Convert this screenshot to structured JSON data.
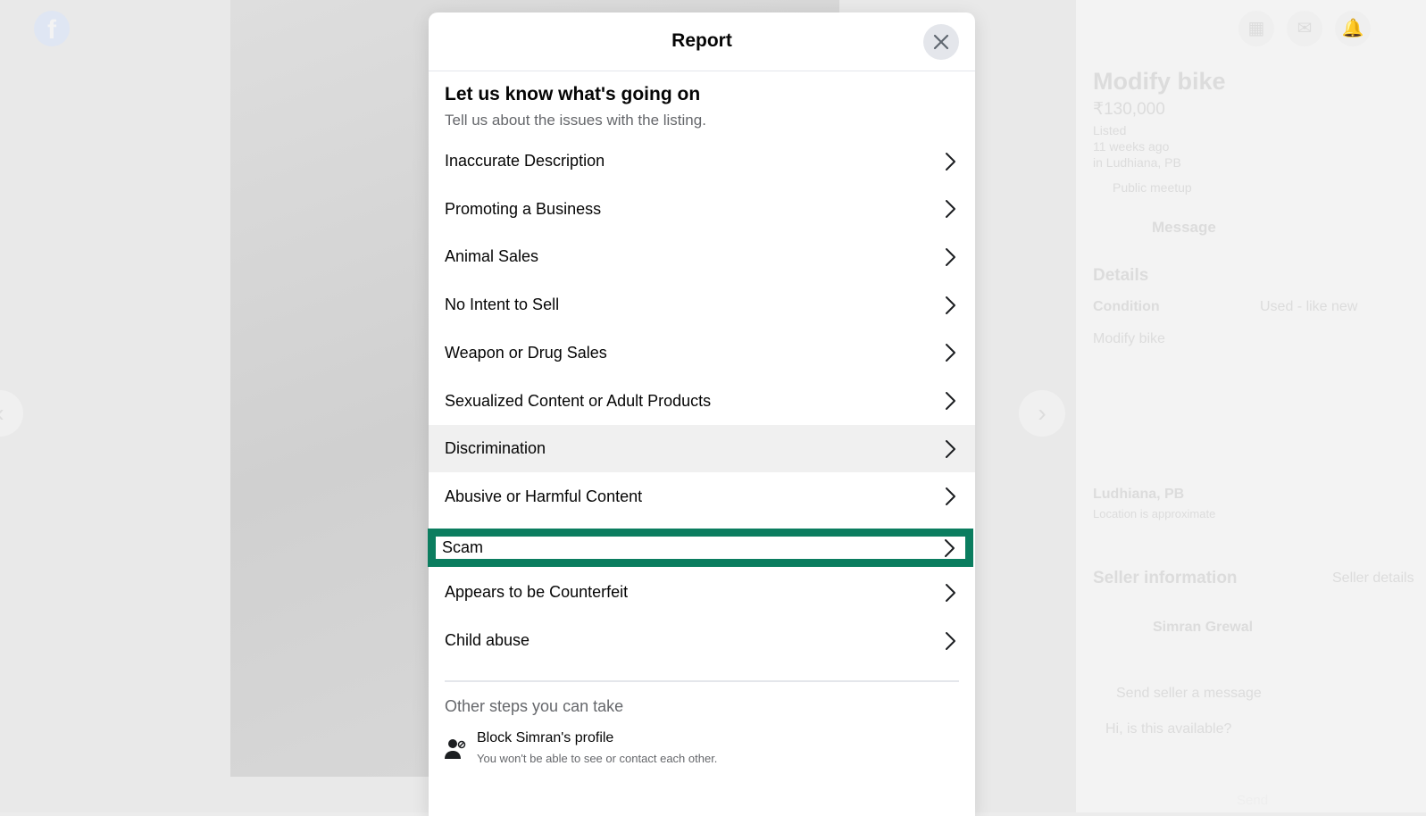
{
  "background": {
    "listing_title": "Modify bike",
    "price": "₹130,000",
    "listed": "Listed",
    "listed_ago": "11 weeks ago",
    "listed_location": "in Ludhiana, PB",
    "public_meetup": "Public meetup",
    "message_button": "Message",
    "details_heading": "Details",
    "condition_label": "Condition",
    "condition_value": "Used - like new",
    "description": "Modify bike",
    "location": "Ludhiana, PB",
    "location_note": "Location is approximate",
    "seller_heading": "Seller information",
    "seller_details_link": "Seller details",
    "seller_name": "Simran Grewal",
    "send_message_label": "Send seller a message",
    "message_placeholder": "Hi, is this available?",
    "send_button": "Send"
  },
  "modal": {
    "title": "Report",
    "heading": "Let us know what's going on",
    "subheading": "Tell us about the issues with the listing.",
    "options": [
      {
        "label": "Inaccurate Description"
      },
      {
        "label": "Promoting a Business"
      },
      {
        "label": "Animal Sales"
      },
      {
        "label": "No Intent to Sell"
      },
      {
        "label": "Weapon or Drug Sales"
      },
      {
        "label": "Sexualized Content or Adult Products"
      },
      {
        "label": "Discrimination"
      },
      {
        "label": "Abusive or Harmful Content"
      },
      {
        "label": "Scam"
      },
      {
        "label": "Appears to be Counterfeit"
      },
      {
        "label": "Child abuse"
      }
    ],
    "hovered_option": "Discrimination",
    "highlighted_option": "Scam",
    "highlight_color": "#0b7d5f",
    "other_steps_heading": "Other steps you can take",
    "block_title": "Block Simran's profile",
    "block_subtitle": "You won't be able to see or contact each other."
  }
}
